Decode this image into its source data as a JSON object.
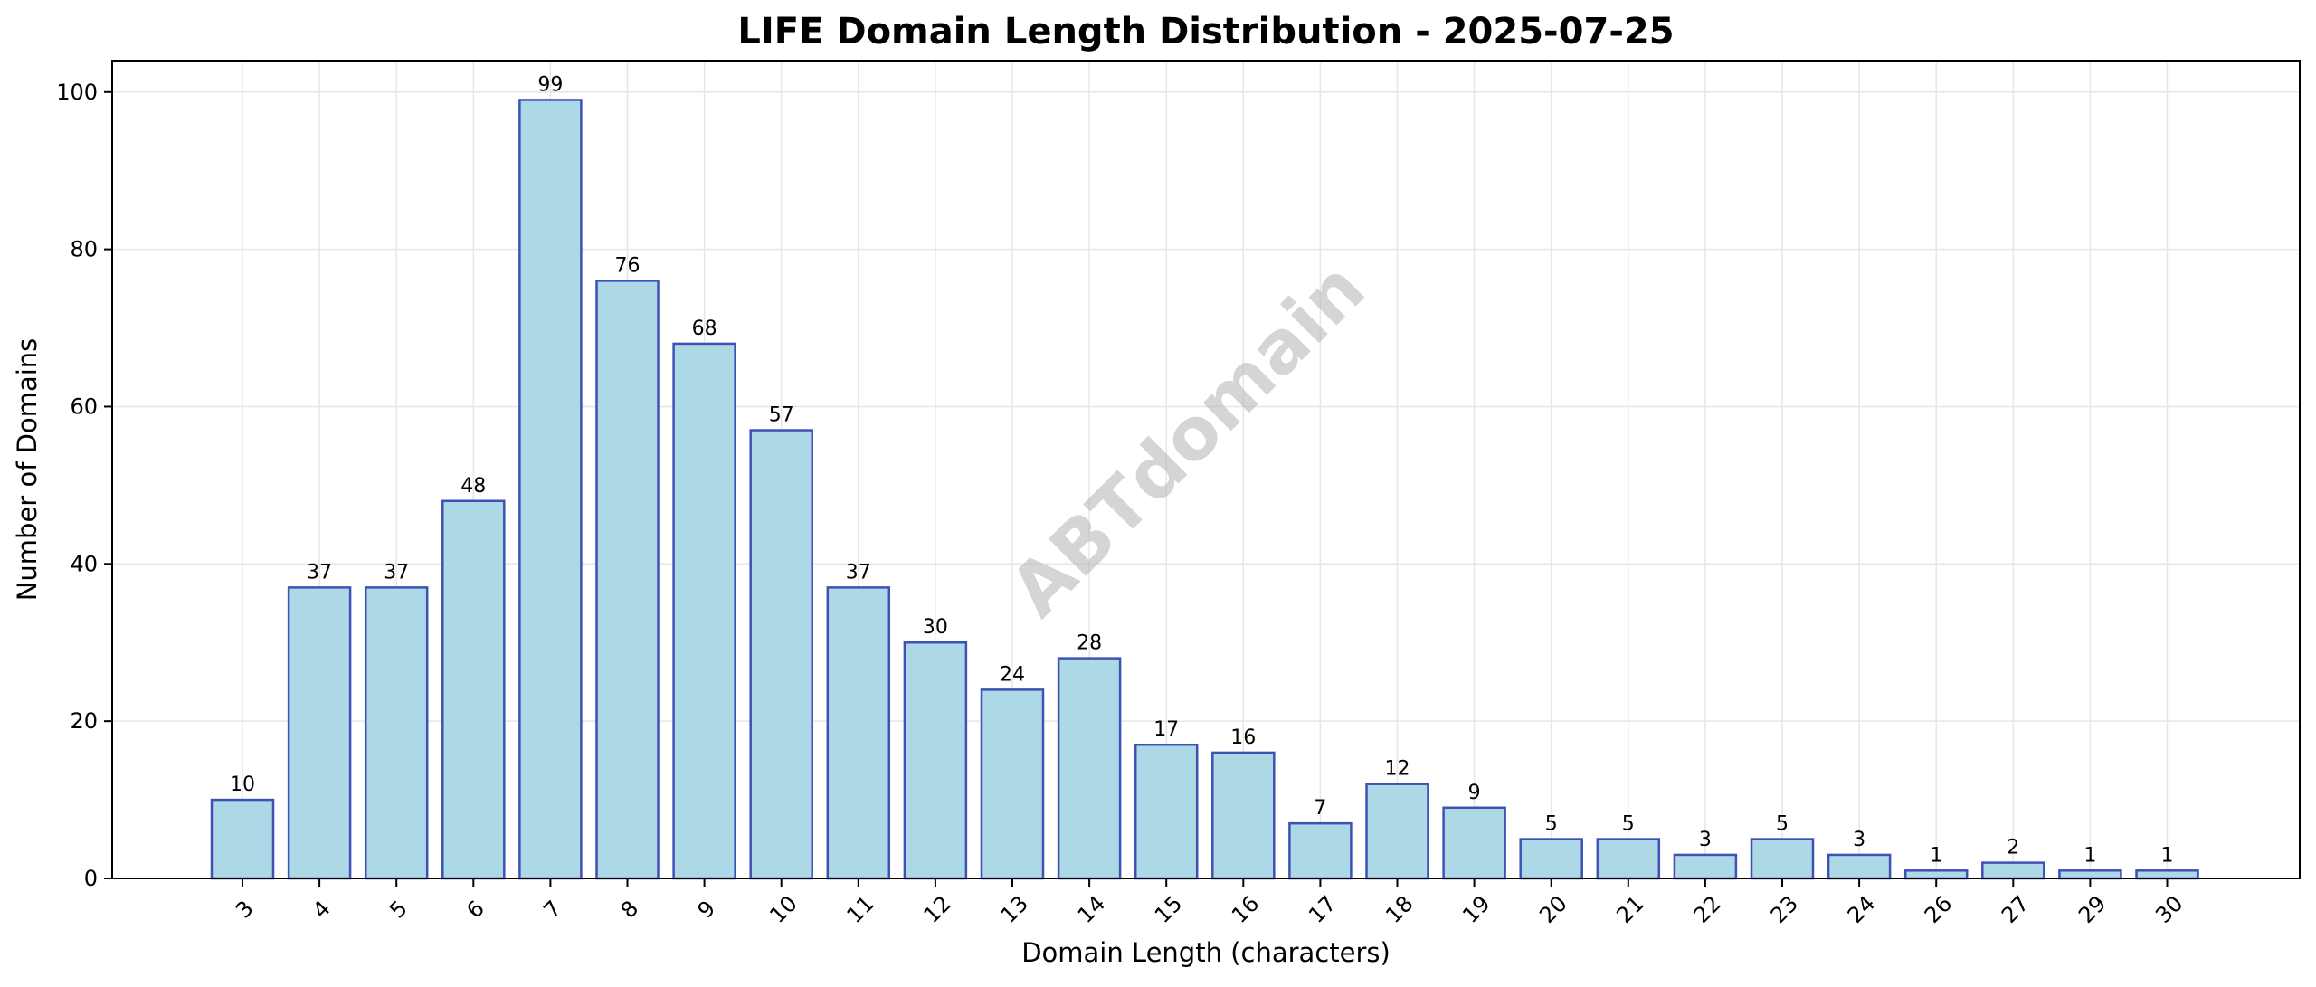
{
  "chart_data": {
    "type": "bar",
    "title": "LIFE Domain Length Distribution - 2025-07-25",
    "xlabel": "Domain Length (characters)",
    "ylabel": "Number of Domains",
    "categories": [
      "3",
      "4",
      "5",
      "6",
      "7",
      "8",
      "9",
      "10",
      "11",
      "12",
      "13",
      "14",
      "15",
      "16",
      "17",
      "18",
      "19",
      "20",
      "21",
      "22",
      "23",
      "24",
      "26",
      "27",
      "29",
      "30"
    ],
    "values": [
      10,
      37,
      37,
      48,
      99,
      76,
      68,
      57,
      37,
      30,
      24,
      28,
      17,
      16,
      7,
      12,
      9,
      5,
      5,
      3,
      5,
      3,
      1,
      2,
      1,
      1
    ],
    "ylim": [
      0,
      104
    ],
    "yticks": [
      0,
      20,
      40,
      60,
      80,
      100
    ],
    "grid": true,
    "watermark": "ABTdomain",
    "colors": {
      "bar_fill": "#add8e6",
      "bar_edge": "#3f51b5",
      "grid": "#e6e6e6",
      "axis": "#000000"
    }
  }
}
